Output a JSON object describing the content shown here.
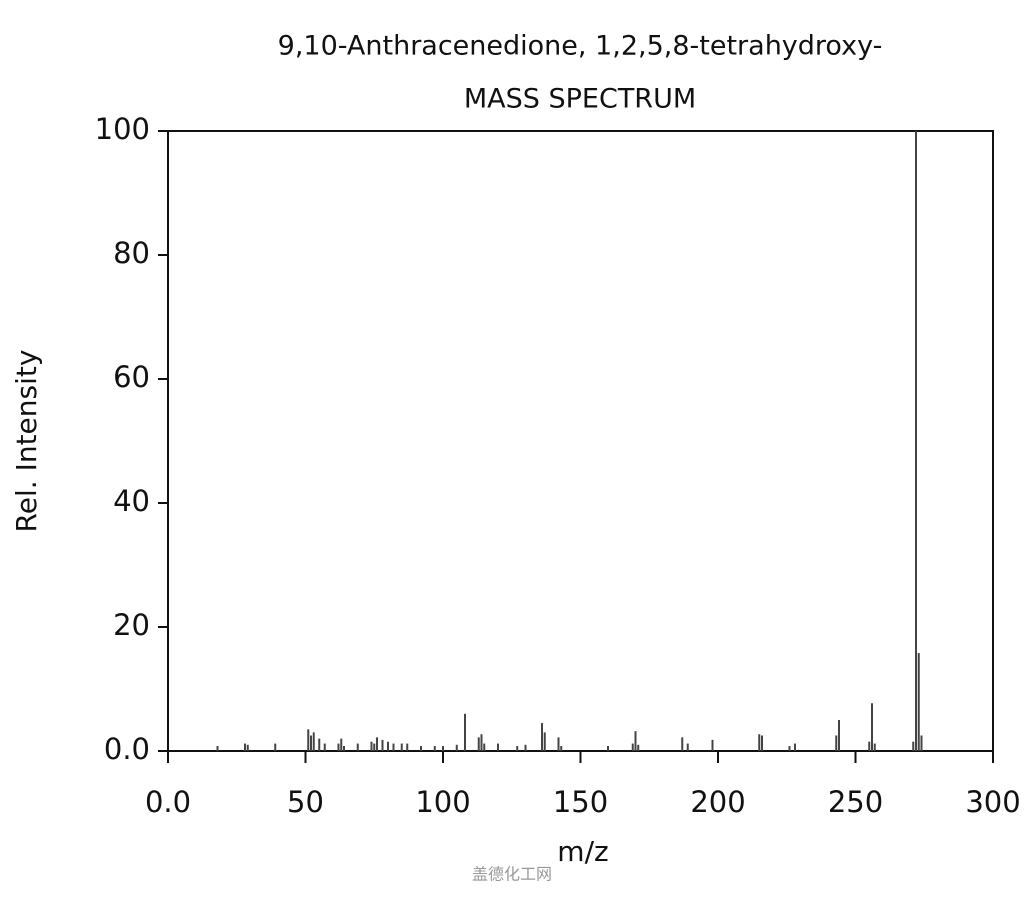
{
  "chart_data": {
    "type": "bar",
    "title": "9,10-Anthracenedione, 1,2,5,8-tetrahydroxy-",
    "subtitle": "MASS SPECTRUM",
    "x_label": "m/z",
    "y_label": "Rel. Intensity",
    "watermark": "盖德化工网",
    "color": "#444444",
    "x": [
      18,
      28,
      29,
      39,
      51,
      52,
      53,
      55,
      57,
      62,
      63,
      64,
      69,
      74,
      75,
      76,
      78,
      80,
      82,
      85,
      87,
      92,
      97,
      100,
      105,
      108,
      113,
      114,
      115,
      120,
      127,
      130,
      136,
      137,
      142,
      143,
      160,
      169,
      170,
      171,
      187,
      189,
      198,
      215,
      216,
      226,
      228,
      243,
      244,
      255,
      256,
      257,
      271,
      272,
      273,
      274
    ],
    "values": [
      0.8,
      1.2,
      1.0,
      1.2,
      3.5,
      2.5,
      3.0,
      2.0,
      1.2,
      1.2,
      2.0,
      0.8,
      1.2,
      1.5,
      1.2,
      2.2,
      1.8,
      1.5,
      1.2,
      1.2,
      1.2,
      0.8,
      0.8,
      0.8,
      1.0,
      6.0,
      2.2,
      2.7,
      1.2,
      1.2,
      0.8,
      1.0,
      4.5,
      3.0,
      2.2,
      0.8,
      0.8,
      1.2,
      3.2,
      1.0,
      2.2,
      1.2,
      1.8,
      2.7,
      2.5,
      0.8,
      1.2,
      2.5,
      5.0,
      1.5,
      7.7,
      1.2,
      1.5,
      100,
      15.8,
      2.5
    ],
    "xlim": [
      0,
      300
    ],
    "ylim": [
      0,
      100
    ],
    "xticks": [
      {
        "value": 0,
        "label": "0.0"
      },
      50,
      100,
      150,
      200,
      250,
      300
    ],
    "yticks": [
      {
        "value": 0,
        "label": "0.0"
      },
      20,
      40,
      60,
      80,
      100
    ]
  }
}
